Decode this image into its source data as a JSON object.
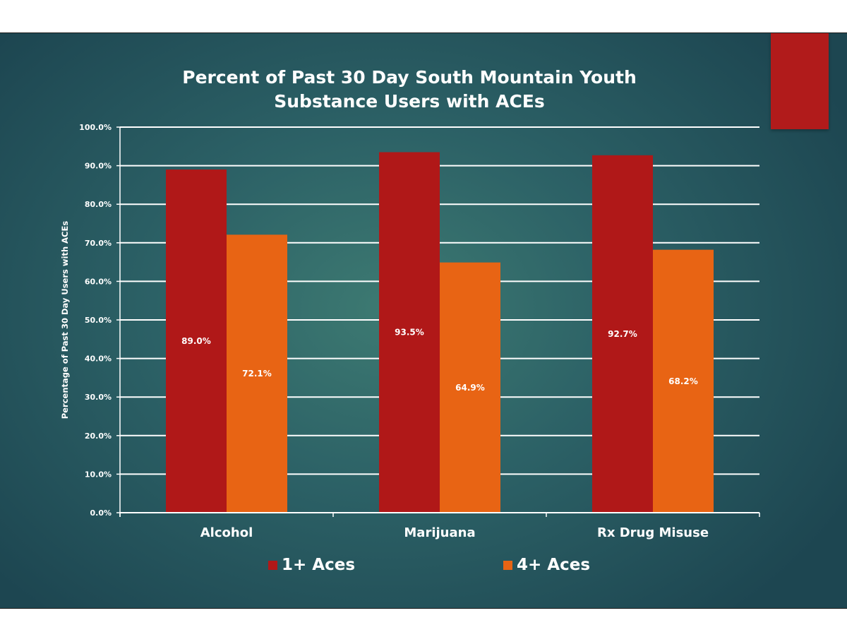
{
  "chart_data": {
    "type": "bar",
    "title_lines": [
      "Percent of Past 30 Day South Mountain Youth",
      "Substance Users with ACEs"
    ],
    "ylabel": "Percentage of Past 30 Day Users with ACEs",
    "xlabel": "",
    "categories": [
      "Alcohol",
      "Marijuana",
      "Rx Drug Misuse"
    ],
    "series": [
      {
        "name": "1+ Aces",
        "color": "#b01818",
        "values": [
          89.0,
          93.5,
          92.7
        ],
        "labels": [
          "89.0%",
          "93.5%",
          "92.7%"
        ]
      },
      {
        "name": "4+ Aces",
        "color": "#e86414",
        "values": [
          72.1,
          64.9,
          68.2
        ],
        "labels": [
          "72.1%",
          "64.9%",
          "68.2%"
        ]
      }
    ],
    "ylim": [
      0,
      100
    ],
    "yticks": [
      0,
      10,
      20,
      30,
      40,
      50,
      60,
      70,
      80,
      90,
      100
    ],
    "ytick_labels": [
      "0.0%",
      "10.0%",
      "20.0%",
      "30.0%",
      "40.0%",
      "50.0%",
      "60.0%",
      "70.0%",
      "80.0%",
      "90.0%",
      "100.0%"
    ],
    "grid": true,
    "legend_position": "bottom"
  },
  "colors": {
    "accent_box": "#b11b1b"
  }
}
